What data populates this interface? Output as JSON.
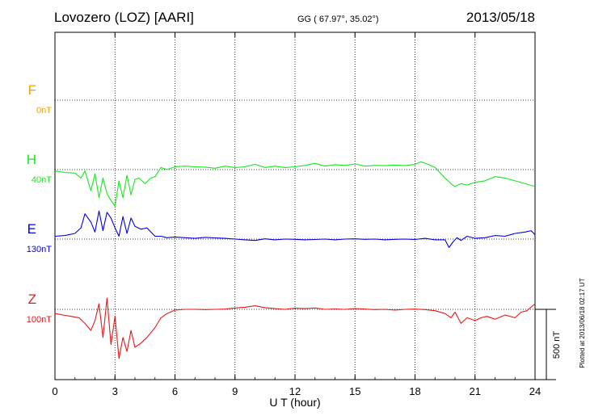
{
  "header": {
    "station": "Lovozero (LOZ)  [AARI]",
    "coords": "GG ( 67.97°,  35.02°)",
    "date": "2013/05/18"
  },
  "plotted_note": "Plotted at 2013/06/18 02:17 UT",
  "chart_data": {
    "type": "line",
    "xlabel": "U T (hour)",
    "xlim": [
      0,
      24
    ],
    "xticks": [
      "0",
      "3",
      "6",
      "9",
      "12",
      "15",
      "18",
      "21",
      "24"
    ],
    "grid": true,
    "scale_bar": {
      "label": "500 nT",
      "value_nT": 500
    },
    "series": [
      {
        "name": "F",
        "offset_label": "0nT",
        "color": "#f5a300",
        "x": [],
        "values": []
      },
      {
        "name": "H",
        "offset_label": "40nT",
        "color": "#19e61e",
        "x": [
          0,
          0.5,
          1.0,
          1.3,
          1.5,
          1.8,
          2.0,
          2.2,
          2.4,
          2.6,
          2.8,
          3.0,
          3.2,
          3.4,
          3.6,
          3.8,
          4.0,
          4.2,
          4.5,
          4.8,
          5.0,
          5.3,
          5.6,
          6.0,
          6.5,
          7.0,
          7.5,
          8.0,
          8.5,
          9.0,
          9.5,
          10.0,
          10.5,
          11.0,
          11.5,
          12.0,
          12.5,
          13.0,
          13.5,
          14.0,
          14.5,
          15.0,
          15.5,
          16.0,
          16.5,
          17.0,
          17.5,
          18.0,
          18.3,
          18.6,
          19.0,
          19.5,
          19.8,
          20.0,
          20.3,
          20.6,
          21.0,
          21.5,
          22.0,
          22.5,
          23.0,
          23.5,
          24.0
        ],
        "values": [
          -10,
          -20,
          -25,
          -60,
          -10,
          -150,
          -30,
          -200,
          -60,
          -170,
          -220,
          -260,
          -80,
          -200,
          -40,
          -180,
          -70,
          -60,
          -100,
          -60,
          -50,
          15,
          0,
          20,
          25,
          20,
          18,
          10,
          25,
          15,
          20,
          38,
          15,
          25,
          15,
          20,
          30,
          45,
          25,
          35,
          30,
          40,
          25,
          30,
          28,
          32,
          28,
          38,
          55,
          40,
          15,
          -60,
          -100,
          -120,
          -100,
          -110,
          -90,
          -80,
          -50,
          -60,
          -80,
          -100,
          -120
        ]
      },
      {
        "name": "E",
        "offset_label": "130nT",
        "color": "#0000e6",
        "x": [
          0,
          0.5,
          1.0,
          1.3,
          1.5,
          1.8,
          2.0,
          2.2,
          2.4,
          2.6,
          2.8,
          3.0,
          3.2,
          3.4,
          3.6,
          3.8,
          4.0,
          4.3,
          4.6,
          5.0,
          5.3,
          5.6,
          6.0,
          6.5,
          7.0,
          7.5,
          8.0,
          8.5,
          9.0,
          9.5,
          10.0,
          10.5,
          11.0,
          11.5,
          12.0,
          12.5,
          13.0,
          13.5,
          14.0,
          14.5,
          15.0,
          15.5,
          16.0,
          16.5,
          17.0,
          17.5,
          18.0,
          18.5,
          19.0,
          19.5,
          19.7,
          19.9,
          20.1,
          20.3,
          20.6,
          21.0,
          21.5,
          22.0,
          22.5,
          23.0,
          23.5,
          23.8,
          24.0
        ],
        "values": [
          20,
          25,
          40,
          80,
          180,
          120,
          50,
          200,
          60,
          190,
          150,
          80,
          20,
          160,
          40,
          150,
          90,
          70,
          80,
          20,
          20,
          10,
          15,
          10,
          5,
          12,
          8,
          5,
          0,
          -5,
          -10,
          2,
          -5,
          0,
          -2,
          -5,
          -3,
          0,
          -5,
          0,
          2,
          -2,
          0,
          -5,
          -2,
          0,
          -3,
          5,
          -5,
          -5,
          -60,
          -20,
          10,
          -10,
          20,
          5,
          10,
          25,
          20,
          40,
          50,
          60,
          30
        ]
      },
      {
        "name": "Z",
        "offset_label": "100nT",
        "color": "#e61919",
        "x": [
          0,
          0.4,
          0.8,
          1.2,
          1.5,
          1.8,
          2.0,
          2.2,
          2.4,
          2.6,
          2.8,
          3.0,
          3.2,
          3.4,
          3.6,
          3.8,
          4.0,
          4.3,
          4.6,
          5.0,
          5.3,
          5.6,
          6.0,
          6.5,
          7.0,
          7.5,
          8.0,
          8.5,
          9.0,
          9.5,
          10.0,
          10.5,
          11.0,
          11.5,
          12.0,
          12.5,
          13.0,
          13.5,
          14.0,
          14.5,
          15.0,
          15.5,
          16.0,
          16.5,
          17.0,
          17.5,
          18.0,
          18.5,
          19.0,
          19.5,
          19.8,
          20.0,
          20.3,
          20.6,
          21.0,
          21.3,
          21.6,
          22.0,
          22.5,
          23.0,
          23.3,
          23.6,
          24.0
        ],
        "values": [
          -30,
          -40,
          -50,
          -60,
          -100,
          -150,
          -80,
          40,
          -200,
          80,
          -250,
          -50,
          -350,
          -200,
          -300,
          -150,
          -270,
          -240,
          -200,
          -130,
          -60,
          -30,
          -5,
          0,
          0,
          -2,
          0,
          2,
          10,
          15,
          25,
          12,
          5,
          0,
          8,
          5,
          10,
          0,
          3,
          0,
          5,
          2,
          -2,
          0,
          -5,
          0,
          2,
          -2,
          -10,
          -30,
          -60,
          -20,
          -100,
          -60,
          -80,
          -60,
          -50,
          -70,
          -40,
          -60,
          -20,
          -10,
          40
        ]
      }
    ]
  }
}
